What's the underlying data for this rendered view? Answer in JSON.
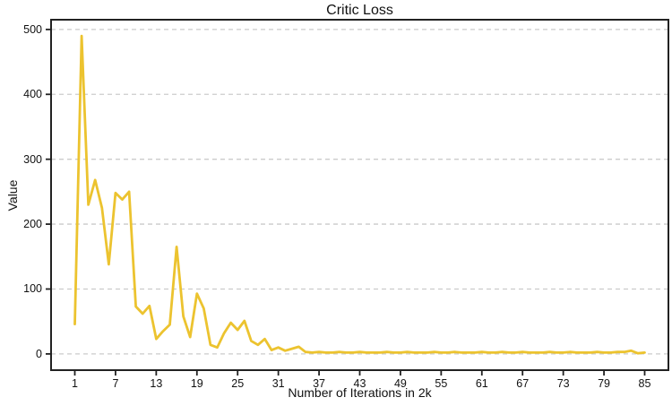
{
  "chart_data": {
    "type": "line",
    "title": "Critic Loss",
    "xlabel": "Number of Iterations in 2k",
    "ylabel": "Value",
    "legend": "none",
    "grid": "horizontal-dashed",
    "line_color": "#ECC32F",
    "axis_color": "#222222",
    "grid_color": "#cbcbcb",
    "text_color": "#111111",
    "xticks": [
      1,
      7,
      13,
      19,
      25,
      31,
      37,
      43,
      49,
      55,
      61,
      67,
      73,
      79,
      85
    ],
    "yticks": [
      0,
      100,
      200,
      300,
      400,
      500
    ],
    "xlim": [
      -2.5,
      88.5
    ],
    "ylim": [
      -25,
      515
    ],
    "x": [
      1,
      2,
      3,
      4,
      5,
      6,
      7,
      8,
      9,
      10,
      11,
      12,
      13,
      14,
      15,
      16,
      17,
      18,
      19,
      20,
      21,
      22,
      23,
      24,
      25,
      26,
      27,
      28,
      29,
      30,
      31,
      32,
      33,
      34,
      35,
      36,
      37,
      38,
      39,
      40,
      41,
      42,
      43,
      44,
      45,
      46,
      47,
      48,
      49,
      50,
      51,
      52,
      53,
      54,
      55,
      56,
      57,
      58,
      59,
      60,
      61,
      62,
      63,
      64,
      65,
      66,
      67,
      68,
      69,
      70,
      71,
      72,
      73,
      74,
      75,
      76,
      77,
      78,
      79,
      80,
      81,
      82,
      83,
      84,
      85
    ],
    "series": [
      {
        "name": "critic-loss",
        "values": [
          46,
          490,
          230,
          268,
          225,
          138,
          248,
          238,
          250,
          73,
          62,
          74,
          23,
          35,
          45,
          165,
          58,
          26,
          93,
          70,
          14,
          10,
          32,
          48,
          37,
          51,
          20,
          14,
          23,
          6,
          10,
          5,
          8,
          11,
          3,
          2,
          3,
          2,
          2,
          3,
          2,
          2,
          3,
          2,
          2,
          2,
          3,
          2,
          2,
          3,
          2,
          2,
          2,
          3,
          2,
          2,
          3,
          2,
          2,
          2,
          3,
          2,
          2,
          3,
          2,
          2,
          3,
          2,
          2,
          2,
          3,
          2,
          2,
          3,
          2,
          2,
          2,
          3,
          2,
          2,
          3,
          3,
          5,
          1,
          2
        ]
      }
    ]
  },
  "layout_text": {
    "note": ""
  }
}
